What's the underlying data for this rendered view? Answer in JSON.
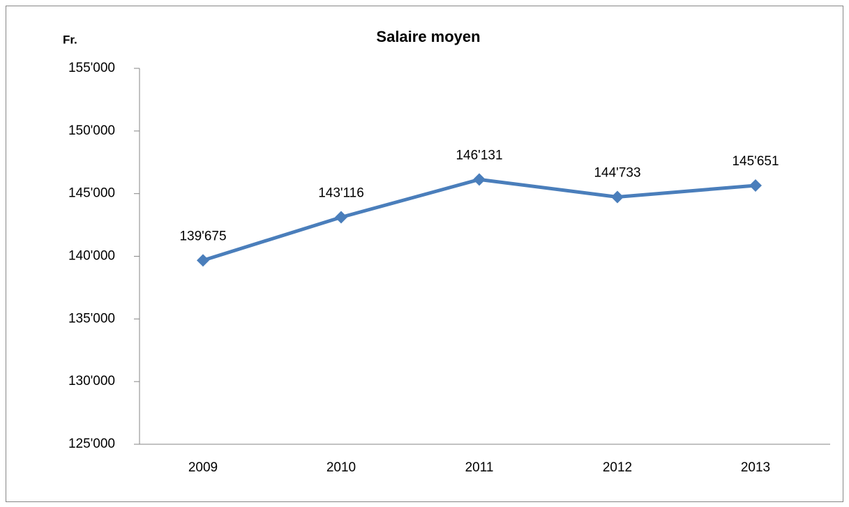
{
  "chart_data": {
    "type": "line",
    "title": "Salaire moyen",
    "y_label": "Fr.",
    "categories": [
      "2009",
      "2010",
      "2011",
      "2012",
      "2013"
    ],
    "values": [
      139675,
      143116,
      146131,
      144733,
      145651
    ],
    "value_labels": [
      "139'675",
      "143'116",
      "146'131",
      "144'733",
      "145'651"
    ],
    "color": "#4a7ebb",
    "ylim": [
      125000,
      155000
    ],
    "yticks": [
      {
        "value": 125000,
        "label": "125'000"
      },
      {
        "value": 130000,
        "label": "130'000"
      },
      {
        "value": 135000,
        "label": "135'000"
      },
      {
        "value": 140000,
        "label": "140'000"
      },
      {
        "value": 145000,
        "label": "145'000"
      },
      {
        "value": 150000,
        "label": "150'000"
      },
      {
        "value": 155000,
        "label": "155'000"
      }
    ],
    "grid": false
  }
}
